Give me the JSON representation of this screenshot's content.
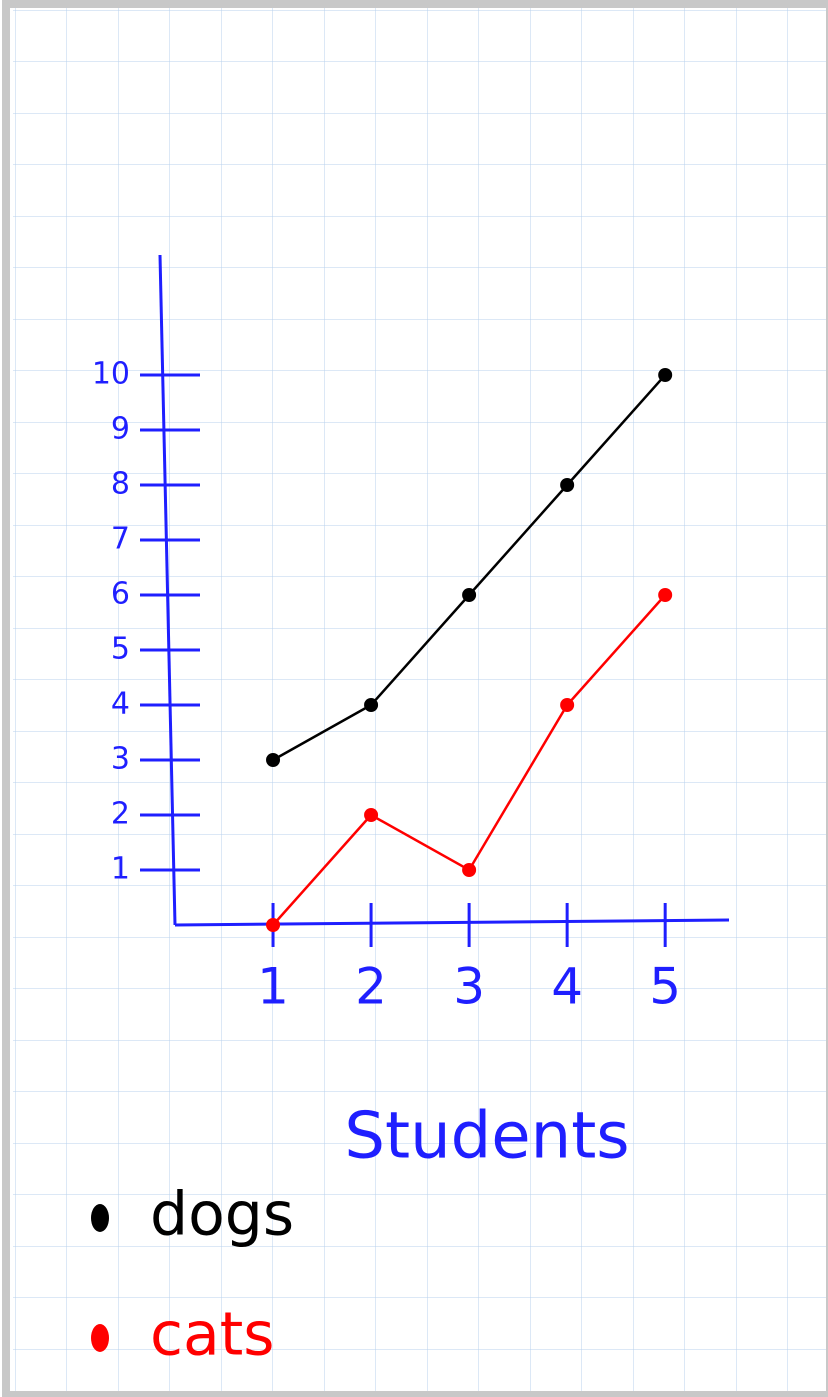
{
  "chart_data": {
    "type": "line",
    "x_label": "Students",
    "x": [
      1,
      2,
      3,
      4,
      5
    ],
    "xlim": [
      0,
      5.6
    ],
    "xticks": [
      1,
      2,
      3,
      4,
      5
    ],
    "ylim": [
      0,
      12
    ],
    "yticks": [
      1,
      2,
      3,
      4,
      5,
      6,
      7,
      8,
      9,
      10
    ],
    "axis_color": "#1f1fff",
    "legend": "bottom-left",
    "series": [
      {
        "name": "dogs",
        "color": "#000000",
        "values": [
          3,
          4,
          6,
          8,
          10
        ]
      },
      {
        "name": "cats",
        "color": "#ff0000",
        "values": [
          0,
          2,
          1,
          4,
          6
        ]
      }
    ]
  }
}
